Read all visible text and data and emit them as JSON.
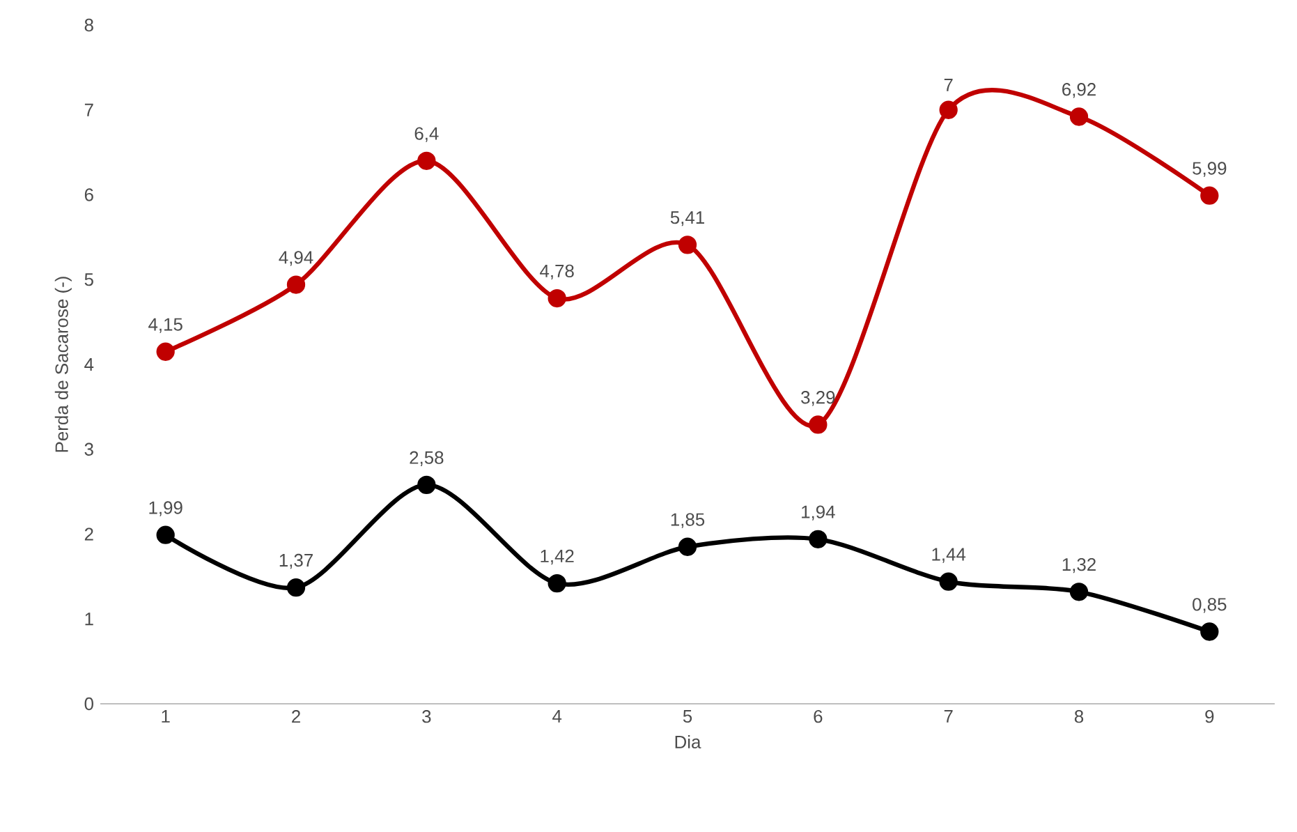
{
  "chart_data": {
    "type": "line",
    "xlabel": "Dia",
    "ylabel": "Perda de Sacarose (-)",
    "categories": [
      "1",
      "2",
      "3",
      "4",
      "5",
      "6",
      "7",
      "8",
      "9"
    ],
    "ylim": [
      0,
      8
    ],
    "yticks": [
      0,
      1,
      2,
      3,
      4,
      5,
      6,
      7,
      8
    ],
    "marker": "circle",
    "line_style": "solid",
    "series": [
      {
        "color": "#c00000",
        "values": [
          4.15,
          4.94,
          6.4,
          4.78,
          5.41,
          3.29,
          7,
          6.92,
          5.99
        ],
        "value_labels": [
          "4,15",
          "4,94",
          "6,4",
          "4,78",
          "5,41",
          "3,29",
          "7",
          "6,92",
          "5,99"
        ]
      },
      {
        "color": "#000000",
        "values": [
          1.99,
          1.37,
          2.58,
          1.42,
          1.85,
          1.94,
          1.44,
          1.32,
          0.85
        ],
        "value_labels": [
          "1,99",
          "1,37",
          "2,58",
          "1,42",
          "1,85",
          "1,94",
          "1,44",
          "1,32",
          "0,85"
        ]
      }
    ]
  }
}
